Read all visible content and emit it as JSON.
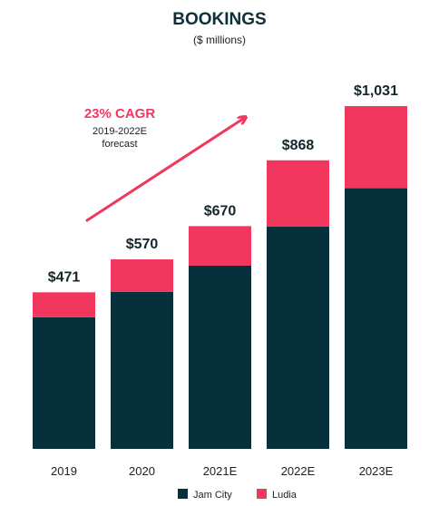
{
  "chart_data": {
    "type": "bar",
    "stacked": true,
    "title": "BOOKINGS",
    "subtitle": "($ millions)",
    "categories": [
      "2019",
      "2020",
      "2021E",
      "2022E",
      "2023E"
    ],
    "totals": [
      471,
      570,
      670,
      868,
      1031
    ],
    "total_labels": [
      "$471",
      "$570",
      "$670",
      "$868",
      "$1,031"
    ],
    "series": [
      {
        "name": "Jam City",
        "color": "#06303a",
        "values": [
          396,
          472,
          551,
          669,
          784
        ]
      },
      {
        "name": "Ludia",
        "color": "#f2375f",
        "values": [
          75,
          98,
          119,
          199,
          247
        ]
      }
    ],
    "ylim": [
      0,
      1031
    ],
    "grid": false,
    "legend": "bottom-center",
    "annotation": {
      "headline": "23% CAGR",
      "line1": "2019-2022E",
      "line2": "forecast",
      "color": "#f2375f",
      "arrow": "up-right"
    }
  }
}
